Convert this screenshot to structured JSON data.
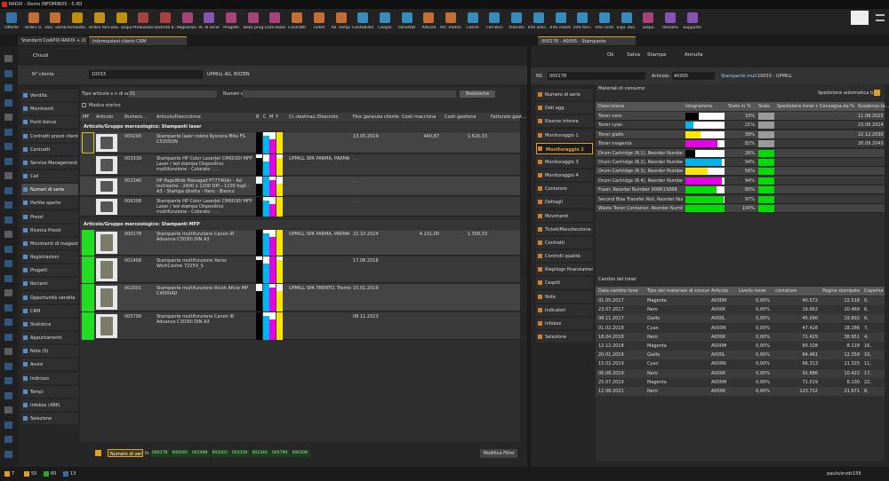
{
  "window_title": "RADIX - Demo INFOMINDS - 0.XO",
  "toolbar": [
    "Offerte",
    "Ordini cl.",
    "Doc. vendita",
    "Richieste...",
    "Ordini forn.",
    "Doc. acqui...",
    "Produzione",
    "Distinta b...",
    "Registrazi...",
    "N. di serie",
    "Progetti",
    "Tasks prog...",
    "Lista tasks",
    "Contratti",
    "Ticket",
    "Ril. tempi",
    "Contabilità",
    "Cespiti",
    "Intrastat",
    "Articoli",
    "Art. matrice",
    "Clienti",
    "Fornitori",
    "Indirizzi",
    "Info artic...",
    "Info clienti",
    "Info forn.",
    "Info conti",
    "Espl. doc.",
    "Dispo",
    "Reclami",
    "Supporto"
  ],
  "tabs_left": [
    "Standard CodiPIX RADIX + (C",
    "Informazioni clienti CRM"
  ],
  "tab_right": "000178 - A0005 - Stampante",
  "left": {
    "close": "Chiudi",
    "customer_label": "N° cliente",
    "customer_no": "10033",
    "customer_name": "UPMILL AG, BOZEN",
    "menu": [
      "Vendita",
      "Movimenti",
      "Punti bonus",
      "Contratti prezzi clienti",
      "Contratti",
      "Service Management",
      "Call",
      "Numeri di serie",
      "Partite aperte",
      "Prezzi",
      "Ricerca Prezzi",
      "Movimenti di magazzino",
      "Registrazioni",
      "Progetti",
      "Reclami",
      "Opportunità vendita",
      "CRM",
      "Statistica",
      "Appuntamenti",
      "Note (5)",
      "Avvisi",
      "Indirizzo",
      "Tempi",
      "Infobox (486)",
      "Selezione"
    ],
    "filter": {
      "type_label": "Tipo articolo x n di seri",
      "type_value": "01",
      "serial_label": "Numeri di serie:",
      "stats_button": "Statistiche",
      "history": "Mostra storico"
    },
    "columns": [
      "MF",
      "Articolo",
      "Numero...",
      "Articolo/Descrizione",
      "B",
      "C",
      "M",
      "Y",
      "Cl.-destinaz./Descrizione/Luogo",
      "Fine garanzia cliente",
      "Costi macchina",
      "Costi gestione",
      "Fatturato gest..."
    ],
    "groups": [
      {
        "title": "Articolo/Gruppo merceologico: Stampanti laser",
        "rows": [
          [
            "000293",
            "Stampante laser colore Kyocera Mita FS-C5350DN",
            null,
            "13.05.2019",
            "440,87",
            "1.616,33"
          ],
          [
            "003339",
            "Stampante HP Color LaserJet CM6030f MFP Laser / led stampa Dispositivo multifunzione - Colorato - ...",
            "UPMILL SPA PARMA, PARMA",
            ". .",
            null,
            null
          ],
          [
            "002340",
            "HP PageWide Managed P77740dn - Ad inchiostro - 2400 x 1200 DPI - 1100 fogli - A3 - Stampa diretta - Nero - Bianco",
            null,
            ". .",
            null,
            null
          ],
          [
            "006308",
            "Stampante HP Color LaserJet CM6030f MFP Laser / led stampa Dispositivo multifunzione - Colorato - ...",
            null,
            ". .",
            null,
            null
          ]
        ]
      },
      {
        "title": "Articolo/Gruppo merceologico: Stampanti MFP",
        "rows": [
          [
            "000178",
            "Stampante multifunzione Canon iR Advance C3030i DIN A3",
            "UPMILL SPA PARMA, PARMA",
            "22.10.2024",
            "4.131,00",
            "1.358,33"
          ],
          [
            "001468",
            "Stampante multifunzione Xerox WorkCentre 7225V_S",
            null,
            "17.08.2018",
            null,
            null
          ],
          [
            "002001",
            "Stampante multifunzione Ricoh Aficio MP C4500AD",
            "UPMILL SPA TRENTO, Trento",
            "15.01.2019",
            null,
            null
          ],
          [
            "005799",
            "Stampante multifunzione Canon iR Advance C3030i DIN A3",
            null,
            "08.11.2023",
            null,
            null
          ]
        ]
      }
    ]
  },
  "filter_bar": {
    "field": "Numero di serie",
    "op": "In",
    "values": [
      "000178",
      "000293",
      "001468",
      "002001",
      "003339",
      "002340",
      "005799",
      "006308"
    ],
    "edit": "Modifica Filtro"
  },
  "right": {
    "toolbar": [
      "Ok",
      "Salva",
      "Stampa",
      "Annulla"
    ],
    "ns_label": "NS",
    "ns": "000178",
    "article_label": "Articolo:",
    "article": "A0005",
    "article_desc": "Stampante mult",
    "customer": "10033 - UPMILL",
    "menu": [
      "Numero di serie",
      "Dati agg.",
      "Risorse interne",
      "Monitoraggio 1",
      "Monitoraggio 2",
      "Monitoraggio 3",
      "Monitoraggio 4",
      "Contatore",
      "Dettagli",
      "Movimenti",
      "Ticket/Manutenzione",
      "Contratti",
      "Controlli qualità",
      "Riepilogo finanziamenti",
      "Cespiti",
      "Note",
      "Indicatori",
      "Infobox",
      "Selezione"
    ],
    "consumables": {
      "title": "Materiali di consumo",
      "auto_label": "Spedizione automatica toner",
      "columns": [
        "Descrizione",
        "Istogramma",
        "Stato in %",
        "Stato",
        "Spedizione toner da",
        "Consegna da %",
        "Scadenza te..."
      ],
      "rows": [
        {
          "desc": "Toner nero",
          "color": "#000000",
          "status": {
            "value": 33,
            "label": "33%"
          },
          "state_color": "#9a9a9a",
          "expiry": "11.08.2025"
        },
        {
          "desc": "Toner cyan",
          "color": "#00b4f0",
          "status": {
            "value": 21,
            "label": "21%"
          },
          "state_color": "#9a9a9a",
          "expiry": "23.08.2024"
        },
        {
          "desc": "Toner giallo",
          "color": "#ffe600",
          "status": {
            "value": 39,
            "label": "39%"
          },
          "state_color": "#9a9a9a",
          "expiry": "22.12.2030"
        },
        {
          "desc": "Toner magenta",
          "color": "#e600e6",
          "status": {
            "value": 82,
            "label": "82%"
          },
          "state_color": "#9a9a9a",
          "expiry": "26.09.2043"
        },
        {
          "desc": "Drum Cartridge (R.1), Reorder Number",
          "color": "#000000",
          "status": {
            "value": 26,
            "label": "26%"
          },
          "state_color": "#00dd00",
          "expiry": null
        },
        {
          "desc": "Drum Cartridge (R.2), Reorder Number",
          "color": "#00b4f0",
          "status": {
            "value": 94,
            "label": "94%"
          },
          "state_color": "#00dd00",
          "expiry": null
        },
        {
          "desc": "Drum Cartridge (R.3), Reorder Number",
          "color": "#ffe600",
          "status": {
            "value": 56,
            "label": "56%"
          },
          "state_color": "#00dd00",
          "expiry": null
        },
        {
          "desc": "Drum Cartridge (R.4), Reorder Number",
          "color": "#e600e6",
          "status": {
            "value": 94,
            "label": "94%"
          },
          "state_color": "#00dd00",
          "expiry": null
        },
        {
          "desc": "Fuser, Reorder Number 008R13088",
          "color": "#00dd00",
          "status": {
            "value": 80,
            "label": "80%"
          },
          "state_color": "#00dd00",
          "expiry": null
        },
        {
          "desc": "Second Bias Transfer Roll, Reorder Number",
          "color": "#00dd00",
          "status": {
            "value": 97,
            "label": "97%"
          },
          "state_color": "#00dd00",
          "expiry": null
        },
        {
          "desc": "Waste Toner Container, Reorder Number",
          "color": "#00dd00",
          "status": {
            "value": 100,
            "label": "100%"
          },
          "state_color": "#00dd00",
          "expiry": null
        }
      ]
    },
    "toner_changes": {
      "title": "Cambio del toner",
      "columns": [
        "Data cambio toner",
        "Tipo del materiale di consumo",
        "Articolo",
        "Livello toner",
        "contatore",
        "Pagine stampate",
        "Copertur"
      ],
      "rows": [
        [
          "01.05.2017",
          "Magenta",
          "A000M",
          "0,00%",
          "40.572",
          "22.518",
          "6,"
        ],
        [
          "23.07.2017",
          "Nero",
          "A000K",
          "0,00%",
          "19.662",
          "20.469",
          "6,"
        ],
        [
          "08.11.2017",
          "Giallo",
          "A000L",
          "0,00%",
          "45.090",
          "19.892",
          "6,"
        ],
        [
          "01.02.2018",
          "Cyan",
          "A000N",
          "0,00%",
          "47.426",
          "18.286",
          "7,"
        ],
        [
          "18.04.2018",
          "Nero",
          "A000K",
          "0,00%",
          "71.425",
          "38.951",
          "4,"
        ],
        [
          "12.12.2018",
          "Magenta",
          "A000M",
          "0,00%",
          "60.328",
          "8.118",
          "16,"
        ],
        [
          "20.01.2019",
          "Giallo",
          "A000L",
          "0,00%",
          "64.461",
          "12.358",
          "10,"
        ],
        [
          "15.02.2019",
          "Cyan",
          "A000N",
          "0,00%",
          "66.313",
          "11.325",
          "11,"
        ],
        [
          "06.08.2019",
          "Nero",
          "A000K",
          "0,00%",
          "91.886",
          "10.422",
          "17,"
        ],
        [
          "25.07.2019",
          "Magenta",
          "A000M",
          "0,00%",
          "71.019",
          "6.130",
          "22,"
        ],
        [
          "12.08.2021",
          "Nero",
          "A000K",
          "0,00%",
          "123.712",
          "21.671",
          "8,"
        ]
      ]
    }
  },
  "status_bar": {
    "counts": [
      "7",
      "55",
      "60",
      "13"
    ],
    "user": "paulo/srvdc156"
  }
}
